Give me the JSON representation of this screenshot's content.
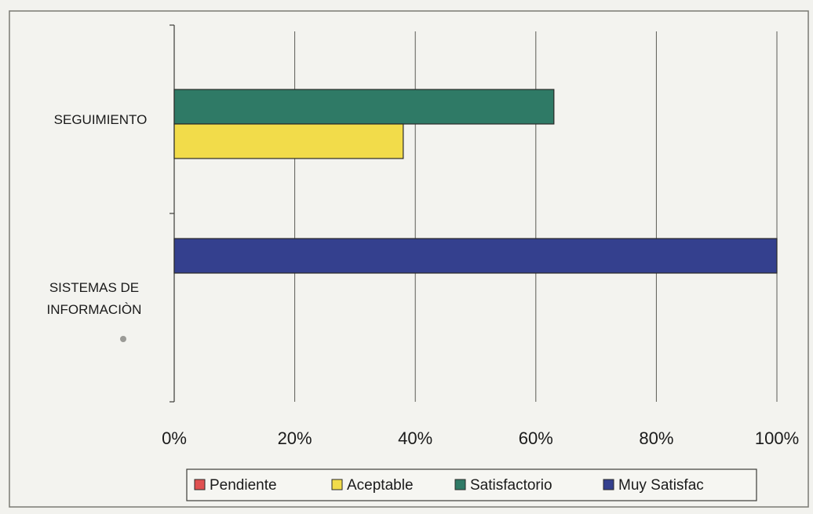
{
  "chart_data": {
    "type": "bar",
    "orientation": "horizontal",
    "categories": [
      "SEGUIMIENTO",
      "SISTEMAS DE INFORMACIÒN"
    ],
    "category_label_lines": [
      [
        "SEGUIMIENTO"
      ],
      [
        "SISTEMAS DE",
        "INFORMACIÒN"
      ]
    ],
    "series": [
      {
        "name": "Pendiente",
        "color": "#e05050",
        "values": [
          0,
          0
        ]
      },
      {
        "name": "Aceptable",
        "color": "#f2dc4a",
        "values": [
          38,
          0
        ]
      },
      {
        "name": "Satisfactorio",
        "color": "#2f7a66",
        "values": [
          63,
          0
        ]
      },
      {
        "name": "Muy Satisfac",
        "color": "#34408e",
        "values": [
          0,
          100
        ]
      }
    ],
    "xlim": [
      0,
      100
    ],
    "x_ticks": [
      "0%",
      "20%",
      "40%",
      "60%",
      "80%",
      "100%"
    ],
    "x_tick_values": [
      0,
      20,
      40,
      60,
      80,
      100
    ],
    "xlabel": "",
    "ylabel": "",
    "title": "",
    "grid": "vertical",
    "legend_position": "bottom"
  }
}
